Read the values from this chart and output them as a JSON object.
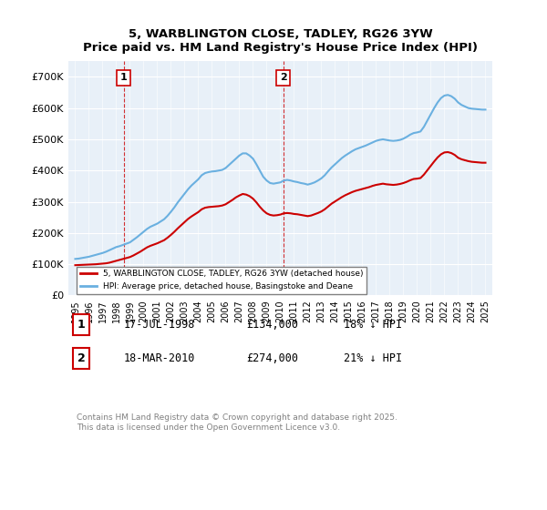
{
  "title": "5, WARBLINGTON CLOSE, TADLEY, RG26 3YW",
  "subtitle": "Price paid vs. HM Land Registry's House Price Index (HPI)",
  "legend_label_red": "5, WARBLINGTON CLOSE, TADLEY, RG26 3YW (detached house)",
  "legend_label_blue": "HPI: Average price, detached house, Basingstoke and Deane",
  "footnote": "Contains HM Land Registry data © Crown copyright and database right 2025.\nThis data is licensed under the Open Government Licence v3.0.",
  "marker1_date": "17-JUL-1998",
  "marker1_price": "£134,000",
  "marker1_hpi": "18% ↓ HPI",
  "marker1_x": 1998.54,
  "marker2_date": "18-MAR-2010",
  "marker2_price": "£274,000",
  "marker2_hpi": "21% ↓ HPI",
  "marker2_x": 2010.21,
  "hpi_color": "#6ab0e0",
  "price_color": "#cc0000",
  "marker_vline_color": "#cc0000",
  "bg_color": "#e8f0f8",
  "plot_bg_color": "#e8f0f8",
  "ylim": [
    0,
    750000
  ],
  "xlim_start": 1994.5,
  "xlim_end": 2025.5,
  "hpi_data_x": [
    1995,
    1995.25,
    1995.5,
    1995.75,
    1996,
    1996.25,
    1996.5,
    1996.75,
    1997,
    1997.25,
    1997.5,
    1997.75,
    1998,
    1998.25,
    1998.5,
    1998.75,
    1999,
    1999.25,
    1999.5,
    1999.75,
    2000,
    2000.25,
    2000.5,
    2000.75,
    2001,
    2001.25,
    2001.5,
    2001.75,
    2002,
    2002.25,
    2002.5,
    2002.75,
    2003,
    2003.25,
    2003.5,
    2003.75,
    2004,
    2004.25,
    2004.5,
    2004.75,
    2005,
    2005.25,
    2005.5,
    2005.75,
    2006,
    2006.25,
    2006.5,
    2006.75,
    2007,
    2007.25,
    2007.5,
    2007.75,
    2008,
    2008.25,
    2008.5,
    2008.75,
    2009,
    2009.25,
    2009.5,
    2009.75,
    2010,
    2010.25,
    2010.5,
    2010.75,
    2011,
    2011.25,
    2011.5,
    2011.75,
    2012,
    2012.25,
    2012.5,
    2012.75,
    2013,
    2013.25,
    2013.5,
    2013.75,
    2014,
    2014.25,
    2014.5,
    2014.75,
    2015,
    2015.25,
    2015.5,
    2015.75,
    2016,
    2016.25,
    2016.5,
    2016.75,
    2017,
    2017.25,
    2017.5,
    2017.75,
    2018,
    2018.25,
    2018.5,
    2018.75,
    2019,
    2019.25,
    2019.5,
    2019.75,
    2020,
    2020.25,
    2020.5,
    2020.75,
    2021,
    2021.25,
    2021.5,
    2021.75,
    2022,
    2022.25,
    2022.5,
    2022.75,
    2023,
    2023.25,
    2023.5,
    2023.75,
    2024,
    2024.25,
    2024.5,
    2024.75,
    2025
  ],
  "hpi_data_y": [
    117000,
    118000,
    120000,
    122000,
    124000,
    127000,
    130000,
    133000,
    136000,
    140000,
    145000,
    150000,
    155000,
    158000,
    162000,
    166000,
    170000,
    178000,
    186000,
    195000,
    204000,
    213000,
    220000,
    225000,
    230000,
    237000,
    244000,
    255000,
    268000,
    282000,
    298000,
    312000,
    326000,
    340000,
    352000,
    362000,
    372000,
    385000,
    392000,
    395000,
    397000,
    398000,
    400000,
    402000,
    408000,
    418000,
    428000,
    438000,
    448000,
    455000,
    455000,
    448000,
    438000,
    420000,
    400000,
    380000,
    368000,
    360000,
    358000,
    360000,
    362000,
    368000,
    370000,
    368000,
    365000,
    363000,
    360000,
    358000,
    355000,
    358000,
    362000,
    368000,
    375000,
    385000,
    398000,
    410000,
    420000,
    430000,
    440000,
    448000,
    455000,
    462000,
    468000,
    472000,
    476000,
    480000,
    485000,
    490000,
    495000,
    498000,
    500000,
    498000,
    496000,
    495000,
    496000,
    498000,
    502000,
    508000,
    515000,
    520000,
    522000,
    525000,
    540000,
    560000,
    580000,
    600000,
    618000,
    632000,
    640000,
    642000,
    638000,
    630000,
    618000,
    610000,
    605000,
    600000,
    598000,
    597000,
    596000,
    595000,
    595000
  ],
  "price_data_x": [
    1995,
    1995.25,
    1995.5,
    1995.75,
    1996,
    1996.25,
    1996.5,
    1996.75,
    1997,
    1997.25,
    1997.5,
    1997.75,
    1998,
    1998.25,
    1998.5,
    1998.75,
    1999,
    1999.25,
    1999.5,
    1999.75,
    2000,
    2000.25,
    2000.5,
    2000.75,
    2001,
    2001.25,
    2001.5,
    2001.75,
    2002,
    2002.25,
    2002.5,
    2002.75,
    2003,
    2003.25,
    2003.5,
    2003.75,
    2004,
    2004.25,
    2004.5,
    2004.75,
    2005,
    2005.25,
    2005.5,
    2005.75,
    2006,
    2006.25,
    2006.5,
    2006.75,
    2007,
    2007.25,
    2007.5,
    2007.75,
    2008,
    2008.25,
    2008.5,
    2008.75,
    2009,
    2009.25,
    2009.5,
    2009.75,
    2010,
    2010.25,
    2010.5,
    2010.75,
    2011,
    2011.25,
    2011.5,
    2011.75,
    2012,
    2012.25,
    2012.5,
    2012.75,
    2013,
    2013.25,
    2013.5,
    2013.75,
    2014,
    2014.25,
    2014.5,
    2014.75,
    2015,
    2015.25,
    2015.5,
    2015.75,
    2016,
    2016.25,
    2016.5,
    2016.75,
    2017,
    2017.25,
    2017.5,
    2017.75,
    2018,
    2018.25,
    2018.5,
    2018.75,
    2019,
    2019.25,
    2019.5,
    2019.75,
    2020,
    2020.25,
    2020.5,
    2020.75,
    2021,
    2021.25,
    2021.5,
    2021.75,
    2022,
    2022.25,
    2022.5,
    2022.75,
    2023,
    2023.25,
    2023.5,
    2023.75,
    2024,
    2024.25,
    2024.5,
    2024.75,
    2025
  ],
  "price_data_y": [
    97000,
    97500,
    98000,
    98500,
    99000,
    99500,
    100000,
    101000,
    102000,
    103000,
    105000,
    108000,
    111000,
    114000,
    117000,
    120000,
    123000,
    128000,
    134000,
    140000,
    147000,
    154000,
    159000,
    163000,
    167000,
    172000,
    177000,
    185000,
    194000,
    204000,
    215000,
    225000,
    235000,
    245000,
    253000,
    260000,
    267000,
    276000,
    281000,
    283000,
    284000,
    285000,
    286000,
    288000,
    292000,
    299000,
    306000,
    314000,
    320000,
    325000,
    323000,
    318000,
    310000,
    298000,
    284000,
    272000,
    263000,
    258000,
    256000,
    257000,
    259000,
    263000,
    264000,
    263000,
    261000,
    260000,
    258000,
    256000,
    254000,
    256000,
    260000,
    264000,
    269000,
    276000,
    285000,
    294000,
    301000,
    308000,
    315000,
    321000,
    326000,
    331000,
    335000,
    338000,
    341000,
    344000,
    347000,
    351000,
    354000,
    356000,
    358000,
    356000,
    355000,
    354000,
    355000,
    357000,
    360000,
    364000,
    369000,
    373000,
    374000,
    376000,
    387000,
    401000,
    415000,
    429000,
    442000,
    452000,
    458000,
    459000,
    456000,
    450000,
    441000,
    436000,
    433000,
    430000,
    428000,
    427000,
    426000,
    425000,
    425000
  ]
}
